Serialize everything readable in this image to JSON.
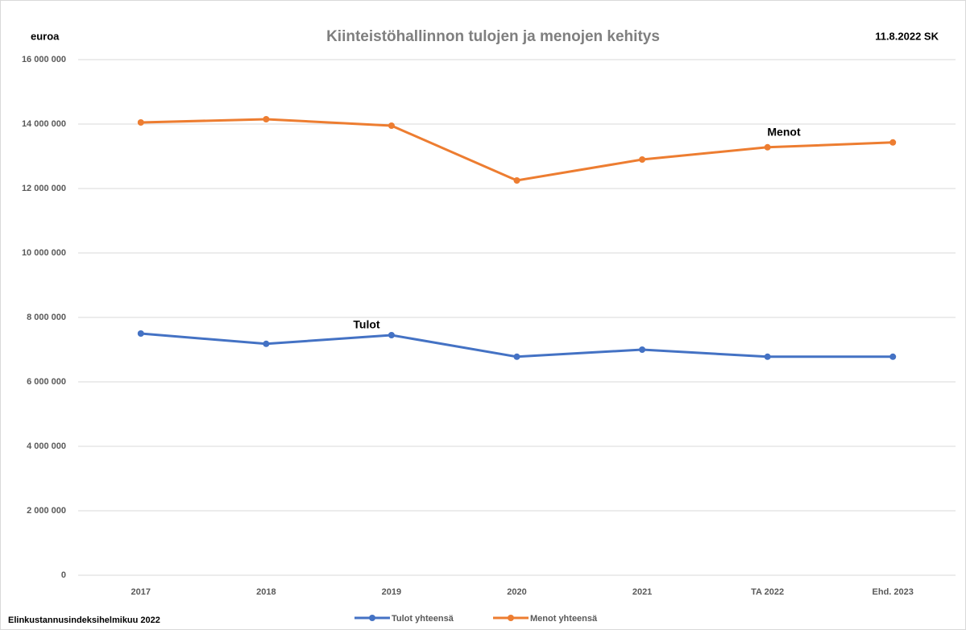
{
  "chart_data": {
    "type": "line",
    "title": "Kiinteistöhallinnon tulojen ja menojen kehitys",
    "y_label": "euroa",
    "date_note": "11.8.2022 SK",
    "footnote": "Elinkustannusindeksihelmikuu 2022",
    "annotations": [
      "Tulot",
      "Menot"
    ],
    "categories": [
      "2017",
      "2018",
      "2019",
      "2020",
      "2021",
      "TA 2022",
      "Ehd. 2023"
    ],
    "series": [
      {
        "name": "Tulot yhteensä",
        "color": "#4472c4",
        "values": [
          7500000,
          7180000,
          7450000,
          6780000,
          7000000,
          6780000,
          6780000
        ]
      },
      {
        "name": "Menot yhteensä",
        "color": "#ed7d31",
        "values": [
          14050000,
          14150000,
          13950000,
          12250000,
          12900000,
          13280000,
          13430000
        ]
      }
    ],
    "ylim": [
      0,
      16000000
    ],
    "yticks": [
      0,
      {
        "value": 2000000,
        "label": "2 000 000"
      },
      {
        "value": 4000000,
        "label": "4 000 000"
      },
      {
        "value": 6000000,
        "label": "6 000 000"
      },
      {
        "value": 8000000,
        "label": "8 000 000"
      },
      {
        "value": 10000000,
        "label": "10 000 000"
      },
      {
        "value": 12000000,
        "label": "12 000 000"
      },
      {
        "value": 14000000,
        "label": "14 000 000"
      },
      {
        "value": 16000000,
        "label": "16 000 000"
      }
    ],
    "grid": true
  }
}
